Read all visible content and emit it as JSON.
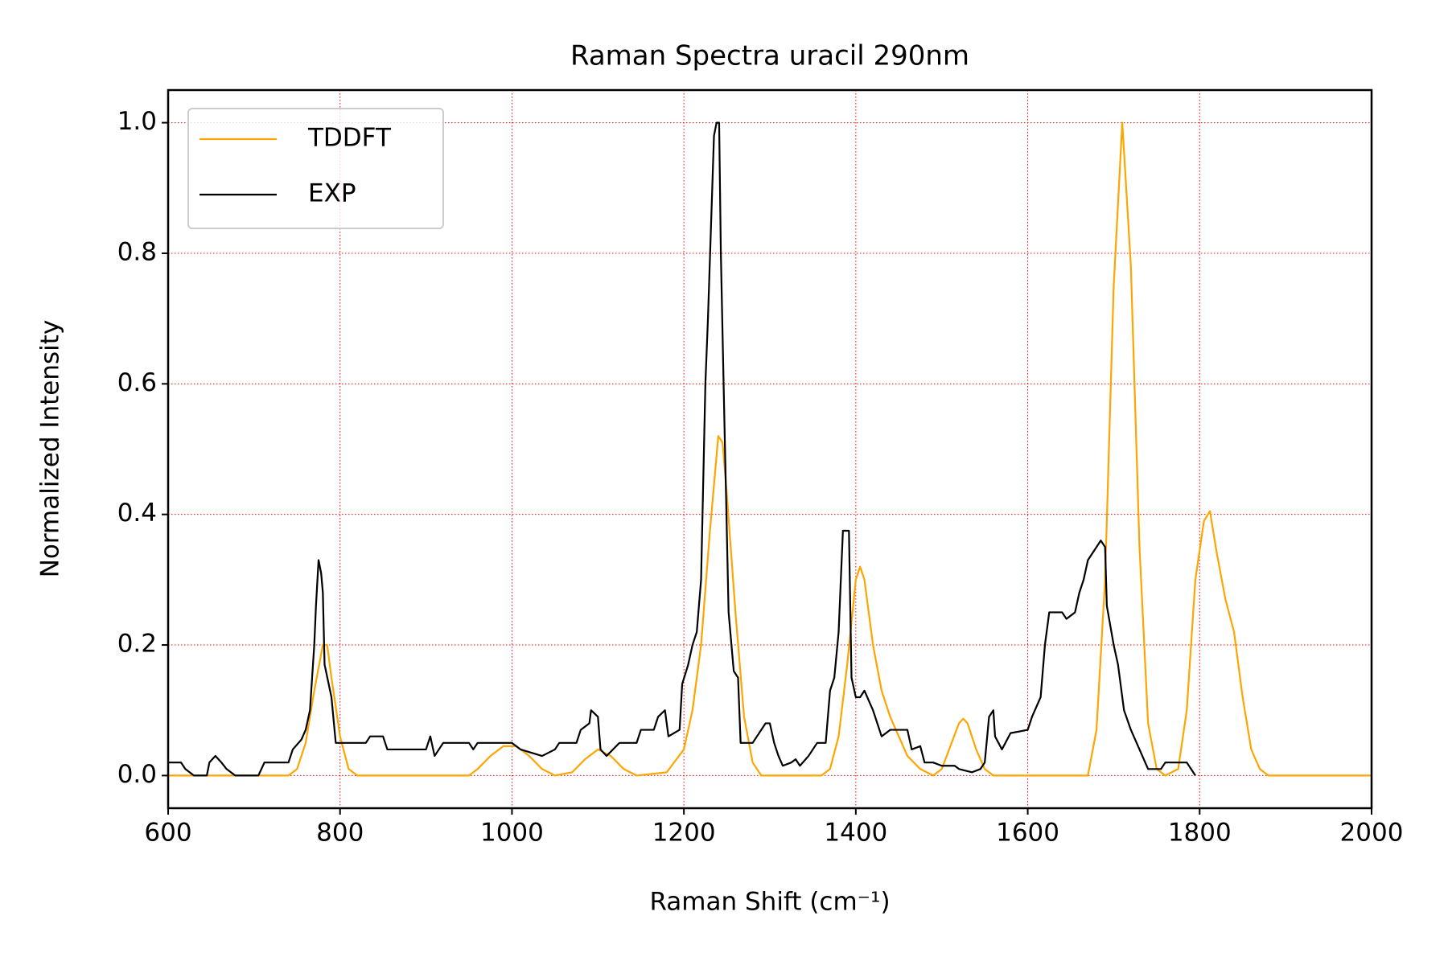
{
  "chart_data": {
    "type": "line",
    "title": "Raman Spectra uracil 290nm",
    "xlabel": "Raman Shift (cm⁻¹)",
    "ylabel": "Normalized Intensity",
    "xlim": [
      600,
      2000
    ],
    "ylim": [
      -0.05,
      1.05
    ],
    "xticks": [
      600,
      800,
      1000,
      1200,
      1400,
      1600,
      1800,
      2000
    ],
    "yticks": [
      {
        "value": 0,
        "label": "0.0"
      },
      0.2,
      0.4,
      0.6,
      0.8,
      {
        "value": 1,
        "label": "1.0"
      }
    ],
    "grid": true,
    "legend": "upper left",
    "series": [
      {
        "name": "TDDFT",
        "color": "#ffa500",
        "x": [
          600,
          740,
          750,
          760,
          770,
          780,
          785,
          790,
          800,
          810,
          820,
          950,
          960,
          975,
          990,
          1005,
          1020,
          1035,
          1050,
          1070,
          1085,
          1100,
          1115,
          1130,
          1145,
          1180,
          1200,
          1210,
          1220,
          1230,
          1240,
          1245,
          1250,
          1260,
          1270,
          1280,
          1290,
          1360,
          1370,
          1380,
          1390,
          1400,
          1405,
          1410,
          1420,
          1430,
          1440,
          1450,
          1460,
          1475,
          1490,
          1500,
          1510,
          1520,
          1525,
          1530,
          1540,
          1550,
          1560,
          1670,
          1680,
          1690,
          1700,
          1710,
          1720,
          1730,
          1740,
          1750,
          1760,
          1775,
          1785,
          1795,
          1805,
          1812,
          1820,
          1830,
          1840,
          1850,
          1860,
          1870,
          1880,
          2000
        ],
        "values": [
          0,
          0,
          0.01,
          0.05,
          0.13,
          0.2,
          0.2,
          0.15,
          0.06,
          0.01,
          0,
          0,
          0.01,
          0.03,
          0.045,
          0.045,
          0.03,
          0.01,
          0,
          0.005,
          0.025,
          0.04,
          0.03,
          0.01,
          0,
          0.005,
          0.04,
          0.1,
          0.2,
          0.37,
          0.52,
          0.51,
          0.43,
          0.25,
          0.09,
          0.02,
          0,
          0,
          0.01,
          0.06,
          0.17,
          0.3,
          0.32,
          0.3,
          0.2,
          0.13,
          0.09,
          0.06,
          0.03,
          0.01,
          0,
          0.01,
          0.045,
          0.08,
          0.087,
          0.08,
          0.04,
          0.01,
          0,
          0,
          0.07,
          0.3,
          0.75,
          1.0,
          0.78,
          0.35,
          0.08,
          0.01,
          0,
          0.01,
          0.1,
          0.3,
          0.39,
          0.405,
          0.34,
          0.27,
          0.22,
          0.12,
          0.04,
          0.01,
          0,
          0
        ]
      },
      {
        "name": "EXP",
        "color": "#000000",
        "x": [
          600,
          615,
          620,
          630,
          645,
          648,
          655,
          662,
          668,
          678,
          705,
          712,
          740,
          745,
          755,
          760,
          765,
          770,
          772,
          775,
          778,
          780,
          782,
          790,
          795,
          830,
          835,
          850,
          855,
          900,
          905,
          910,
          920,
          950,
          955,
          960,
          1000,
          1010,
          1035,
          1050,
          1055,
          1075,
          1080,
          1090,
          1092,
          1100,
          1103,
          1110,
          1125,
          1145,
          1150,
          1165,
          1170,
          1178,
          1182,
          1195,
          1198,
          1205,
          1210,
          1215,
          1220,
          1225,
          1228,
          1232,
          1235,
          1238,
          1241,
          1243,
          1247,
          1252,
          1258,
          1263,
          1266,
          1280,
          1285,
          1295,
          1300,
          1305,
          1310,
          1315,
          1325,
          1330,
          1335,
          1345,
          1355,
          1365,
          1370,
          1375,
          1380,
          1385,
          1392,
          1395,
          1400,
          1405,
          1410,
          1420,
          1430,
          1440,
          1460,
          1465,
          1475,
          1480,
          1490,
          1500,
          1515,
          1520,
          1535,
          1545,
          1550,
          1555,
          1560,
          1562,
          1570,
          1580,
          1600,
          1605,
          1615,
          1620,
          1625,
          1640,
          1645,
          1655,
          1660,
          1665,
          1670,
          1675,
          1680,
          1685,
          1690,
          1692,
          1700,
          1705,
          1712,
          1720,
          1730,
          1740,
          1755,
          1760,
          1780,
          1785,
          1795
        ],
        "values": [
          0.02,
          0.02,
          0.01,
          0,
          0,
          0.02,
          0.03,
          0.02,
          0.01,
          0,
          0,
          0.02,
          0.02,
          0.04,
          0.055,
          0.07,
          0.1,
          0.2,
          0.26,
          0.33,
          0.31,
          0.28,
          0.17,
          0.12,
          0.05,
          0.05,
          0.06,
          0.06,
          0.04,
          0.04,
          0.06,
          0.03,
          0.05,
          0.05,
          0.04,
          0.05,
          0.05,
          0.04,
          0.03,
          0.04,
          0.05,
          0.05,
          0.07,
          0.08,
          0.1,
          0.09,
          0.04,
          0.03,
          0.05,
          0.05,
          0.07,
          0.07,
          0.09,
          0.1,
          0.06,
          0.07,
          0.14,
          0.17,
          0.2,
          0.22,
          0.3,
          0.6,
          0.7,
          0.86,
          0.98,
          1.0,
          1.0,
          0.8,
          0.55,
          0.25,
          0.16,
          0.15,
          0.05,
          0.05,
          0.06,
          0.08,
          0.08,
          0.05,
          0.03,
          0.015,
          0.02,
          0.025,
          0.015,
          0.03,
          0.05,
          0.05,
          0.13,
          0.15,
          0.22,
          0.375,
          0.375,
          0.15,
          0.12,
          0.12,
          0.13,
          0.1,
          0.06,
          0.07,
          0.07,
          0.04,
          0.045,
          0.02,
          0.02,
          0.015,
          0.015,
          0.01,
          0.005,
          0.01,
          0.02,
          0.09,
          0.1,
          0.06,
          0.04,
          0.065,
          0.07,
          0.09,
          0.12,
          0.2,
          0.25,
          0.25,
          0.24,
          0.25,
          0.28,
          0.3,
          0.33,
          0.34,
          0.35,
          0.36,
          0.35,
          0.26,
          0.2,
          0.17,
          0.1,
          0.07,
          0.04,
          0.01,
          0.01,
          0.02,
          0.02,
          0.02,
          0
        ]
      }
    ]
  }
}
